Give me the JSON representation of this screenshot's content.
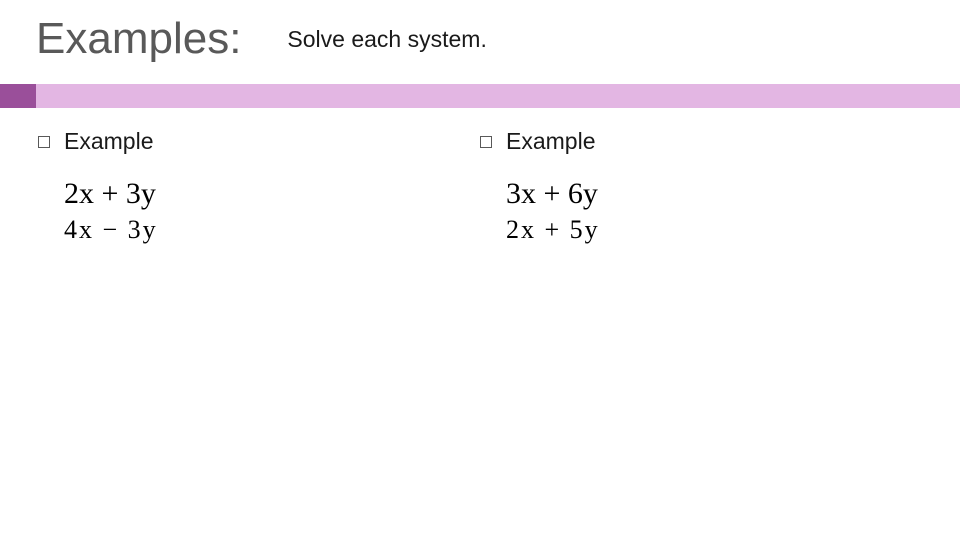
{
  "colors": {
    "title": "#595959",
    "body_text": "#1a1a1a",
    "accent_dark": "#9a4f9a",
    "accent_light": "#e3b6e3",
    "bullet_border": "#595959",
    "equation_text": "#000000",
    "background": "#ffffff"
  },
  "header": {
    "title": "Examples:",
    "subtitle": "Solve each system."
  },
  "left": {
    "label": "Example",
    "eq1": "2x + 3y",
    "eq2": "4x − 3y"
  },
  "right": {
    "label": "Example",
    "eq1": "3x + 6y",
    "eq2": "2x + 5y"
  }
}
